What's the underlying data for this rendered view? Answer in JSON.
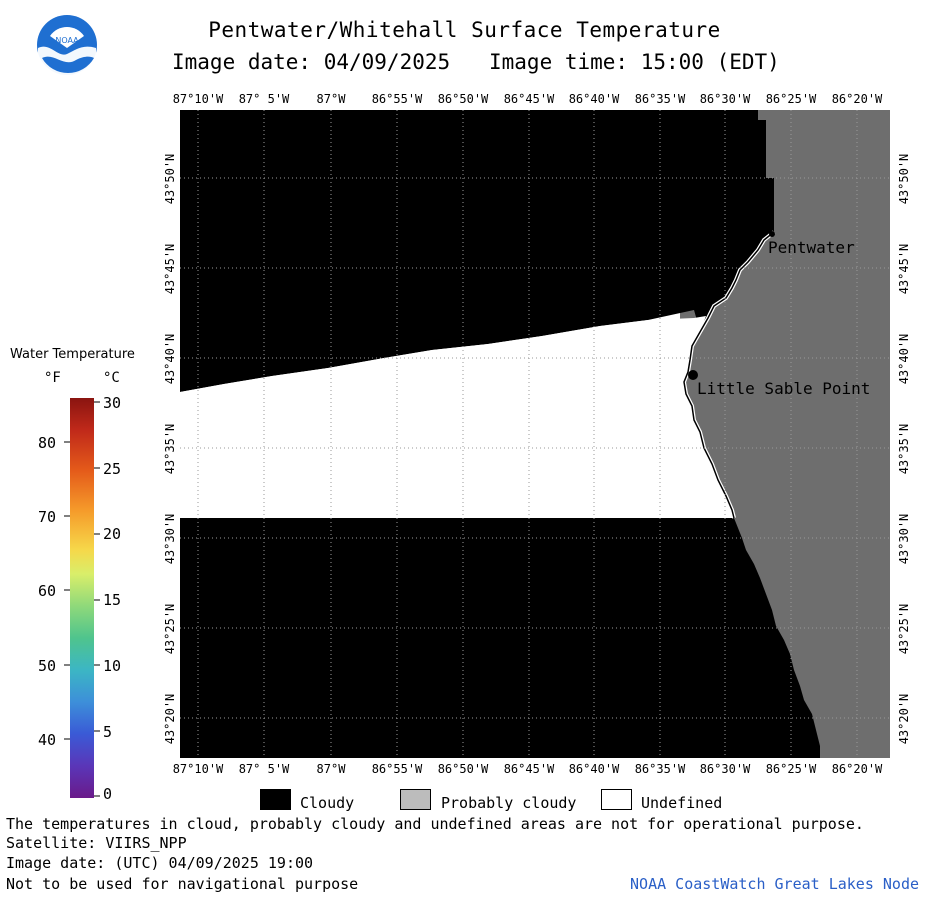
{
  "title": "Pentwater/Whitehall Surface Temperature",
  "subtitle_date": "Image date: 04/09/2025",
  "subtitle_time": "Image time: 15:00 (EDT)",
  "logo_text": "NOAA",
  "longitude_labels": [
    "87°10'W",
    "87° 5'W",
    "87°W",
    "86°55'W",
    "86°50'W",
    "86°45'W",
    "86°40'W",
    "86°35'W",
    "86°30'W",
    "86°25'W",
    "86°20'W"
  ],
  "latitude_labels": [
    "43°50'N",
    "43°45'N",
    "43°40'N",
    "43°35'N",
    "43°30'N",
    "43°25'N",
    "43°20'N"
  ],
  "places": {
    "pentwater": "Pentwater",
    "little_sable_point": "Little Sable Point"
  },
  "color_scale": {
    "title": "Water Temperature",
    "unit_f": "°F",
    "unit_c": "°C",
    "f_ticks": [
      "80",
      "70",
      "60",
      "50",
      "40"
    ],
    "c_ticks": [
      "30",
      "25",
      "20",
      "15",
      "10",
      "5",
      "0"
    ]
  },
  "legend": {
    "cloudy": "Cloudy",
    "probably_cloudy": "Probably cloudy",
    "undefined": "Undefined"
  },
  "colors": {
    "cloudy": "#000000",
    "land": "#6e6e6e",
    "undefined": "#ffffff",
    "probably_cloudy": "#bcbcbc",
    "credit": "#2a5fc7"
  },
  "footer": {
    "disclaimer": "The temperatures in cloud, probably cloudy and undefined areas are not for operational purpose.",
    "satellite": "Satellite: VIIRS_NPP",
    "utc_date": "Image date: (UTC) 04/09/2025  19:00",
    "nav_warning": "Not to be used for navigational purpose",
    "credit": "NOAA CoastWatch Great Lakes Node"
  }
}
